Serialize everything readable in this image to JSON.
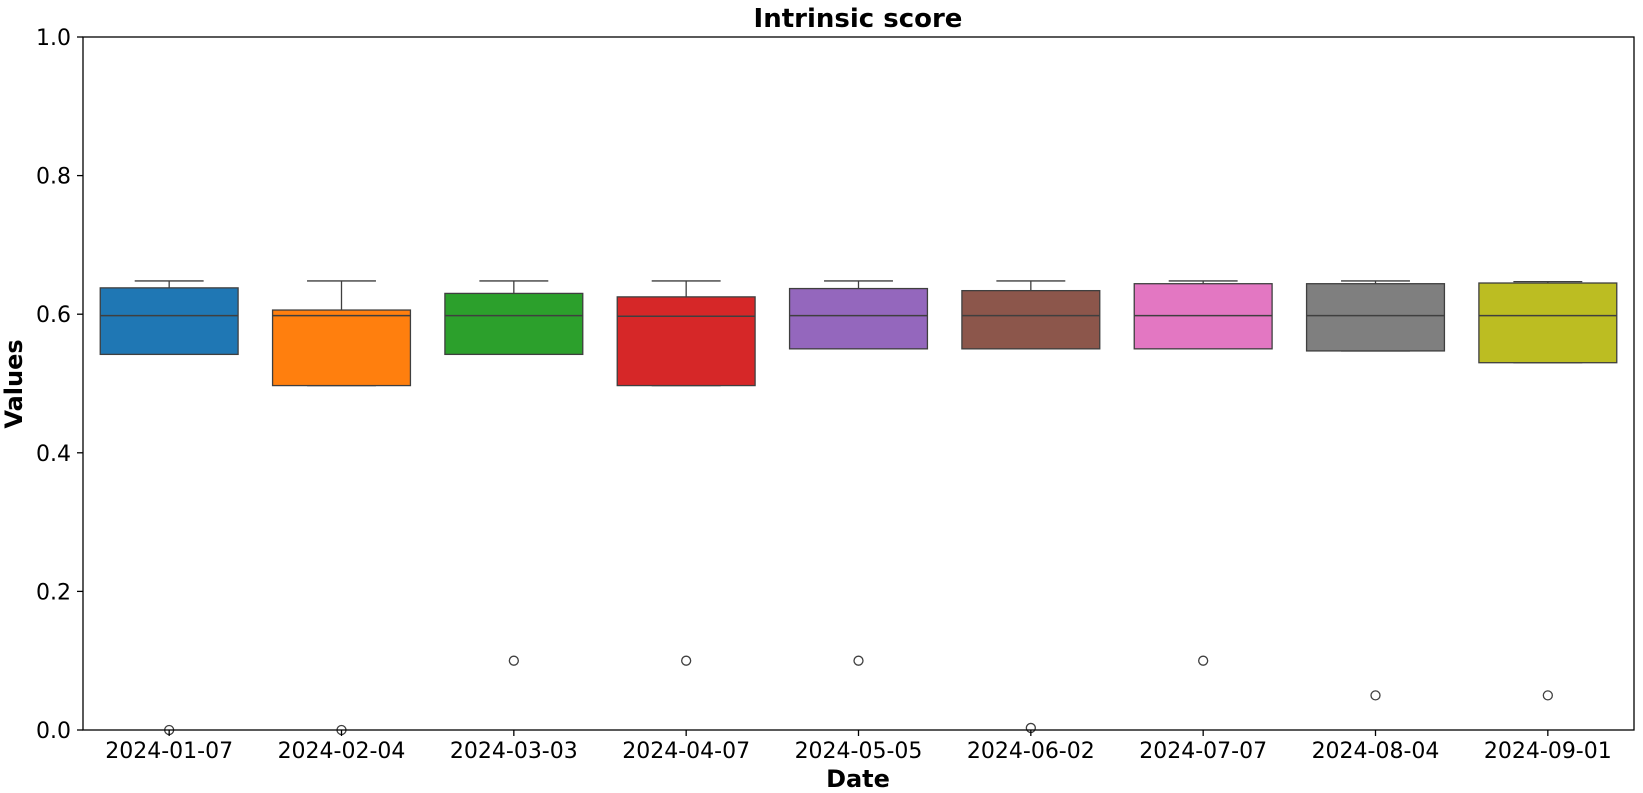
{
  "chart_data": {
    "type": "box",
    "title": "Intrinsic score",
    "xlabel": "Date",
    "ylabel": "Values",
    "ylim": [
      0.0,
      1.0
    ],
    "yticks": [
      "0.0",
      "0.2",
      "0.4",
      "0.6",
      "0.8",
      "1.0"
    ],
    "grid": false,
    "legend": "none",
    "categories": [
      "2024-01-07",
      "2024-02-04",
      "2024-03-03",
      "2024-04-07",
      "2024-05-05",
      "2024-06-02",
      "2024-07-07",
      "2024-08-04",
      "2024-09-01"
    ],
    "series": [
      {
        "name": "2024-01-07",
        "color": "#1f77b4",
        "whisker_low": 0.542,
        "q1": 0.542,
        "median": 0.598,
        "q3": 0.638,
        "whisker_high": 0.648,
        "outliers": [
          0.0
        ]
      },
      {
        "name": "2024-02-04",
        "color": "#ff7f0e",
        "whisker_low": 0.497,
        "q1": 0.497,
        "median": 0.598,
        "q3": 0.606,
        "whisker_high": 0.648,
        "outliers": [
          0.0
        ]
      },
      {
        "name": "2024-03-03",
        "color": "#2ca02c",
        "whisker_low": 0.542,
        "q1": 0.542,
        "median": 0.598,
        "q3": 0.63,
        "whisker_high": 0.648,
        "outliers": [
          0.1
        ]
      },
      {
        "name": "2024-04-07",
        "color": "#d62728",
        "whisker_low": 0.497,
        "q1": 0.497,
        "median": 0.597,
        "q3": 0.625,
        "whisker_high": 0.648,
        "outliers": [
          0.1
        ]
      },
      {
        "name": "2024-05-05",
        "color": "#9467bd",
        "whisker_low": 0.55,
        "q1": 0.55,
        "median": 0.598,
        "q3": 0.637,
        "whisker_high": 0.648,
        "outliers": [
          0.1
        ]
      },
      {
        "name": "2024-06-02",
        "color": "#8c564b",
        "whisker_low": 0.55,
        "q1": 0.55,
        "median": 0.598,
        "q3": 0.634,
        "whisker_high": 0.648,
        "outliers": [
          0.003
        ]
      },
      {
        "name": "2024-07-07",
        "color": "#e377c2",
        "whisker_low": 0.55,
        "q1": 0.55,
        "median": 0.598,
        "q3": 0.644,
        "whisker_high": 0.648,
        "outliers": [
          0.1
        ]
      },
      {
        "name": "2024-08-04",
        "color": "#7f7f7f",
        "whisker_low": 0.547,
        "q1": 0.547,
        "median": 0.598,
        "q3": 0.644,
        "whisker_high": 0.648,
        "outliers": [
          0.05
        ]
      },
      {
        "name": "2024-09-01",
        "color": "#bcbd22",
        "whisker_low": 0.53,
        "q1": 0.53,
        "median": 0.598,
        "q3": 0.645,
        "whisker_high": 0.647,
        "outliers": [
          0.05
        ]
      }
    ]
  }
}
